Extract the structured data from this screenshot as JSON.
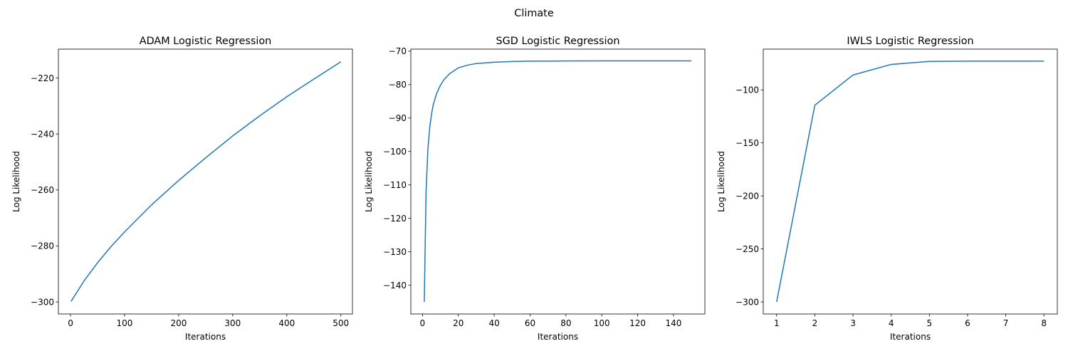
{
  "suptitle": "Climate",
  "chart_data": [
    {
      "type": "line",
      "title": "ADAM Logistic Regression",
      "xlabel": "Iterations",
      "ylabel": "Log Likelihood",
      "xlim": [
        -22.4,
        521.4
      ],
      "ylim": [
        -304.3,
        -209.7
      ],
      "xticks": [
        0,
        100,
        200,
        300,
        400,
        500
      ],
      "yticks": [
        -300,
        -280,
        -260,
        -240,
        -220
      ],
      "xtick_labels": [
        "0",
        "100",
        "200",
        "300",
        "400",
        "500"
      ],
      "ytick_labels": [
        "−300",
        "−280",
        "−260",
        "−240",
        "−220"
      ],
      "series": [
        {
          "color": "#1f77b4",
          "x": [
            1,
            25,
            50,
            75,
            100,
            150,
            200,
            250,
            300,
            350,
            400,
            450,
            500
          ],
          "y": [
            -299.8,
            -292.5,
            -286.0,
            -280.2,
            -275.0,
            -265.3,
            -256.6,
            -248.5,
            -240.7,
            -233.5,
            -226.7,
            -220.4,
            -214.2
          ]
        }
      ]
    },
    {
      "type": "line",
      "title": "SGD Logistic Regression",
      "xlabel": "Iterations",
      "ylabel": "Log Likelihood",
      "xlim": [
        -6.5,
        157.5
      ],
      "ylim": [
        -148.6,
        -69.4
      ],
      "xticks": [
        0,
        20,
        40,
        60,
        80,
        100,
        120,
        140
      ],
      "yticks": [
        -140,
        -130,
        -120,
        -110,
        -100,
        -90,
        -80,
        -70
      ],
      "xtick_labels": [
        "0",
        "20",
        "40",
        "60",
        "80",
        "100",
        "120",
        "140"
      ],
      "ytick_labels": [
        "−140",
        "−130",
        "−120",
        "−110",
        "−100",
        "−90",
        "−80",
        "−70"
      ],
      "series": [
        {
          "color": "#1f77b4",
          "x": [
            1,
            2,
            3,
            4,
            5,
            6,
            8,
            10,
            12,
            15,
            20,
            25,
            30,
            40,
            50,
            60,
            80,
            100,
            120,
            150
          ],
          "y": [
            -145.0,
            -112.0,
            -99.5,
            -93.0,
            -89.0,
            -86.0,
            -82.5,
            -80.2,
            -78.5,
            -76.8,
            -75.0,
            -74.2,
            -73.7,
            -73.3,
            -73.1,
            -73.0,
            -72.95,
            -72.9,
            -72.9,
            -72.9
          ]
        }
      ]
    },
    {
      "type": "line",
      "title": "IWLS Logistic Regression",
      "xlabel": "Iterations",
      "ylabel": "Log Likelihood",
      "xlim": [
        0.65,
        8.35
      ],
      "ylim": [
        -311.4,
        -61.6
      ],
      "xticks": [
        1,
        2,
        3,
        4,
        5,
        6,
        7,
        8
      ],
      "yticks": [
        -300,
        -250,
        -200,
        -150,
        -100
      ],
      "xtick_labels": [
        "1",
        "2",
        "3",
        "4",
        "5",
        "6",
        "7",
        "8"
      ],
      "ytick_labels": [
        "−300",
        "−250",
        "−200",
        "−150",
        "−100"
      ],
      "series": [
        {
          "color": "#1f77b4",
          "x": [
            1,
            2,
            3,
            4,
            5,
            6,
            7,
            8
          ],
          "y": [
            -300.0,
            -114.5,
            -86.0,
            -76.0,
            -73.2,
            -72.9,
            -72.9,
            -72.9
          ]
        }
      ]
    }
  ]
}
